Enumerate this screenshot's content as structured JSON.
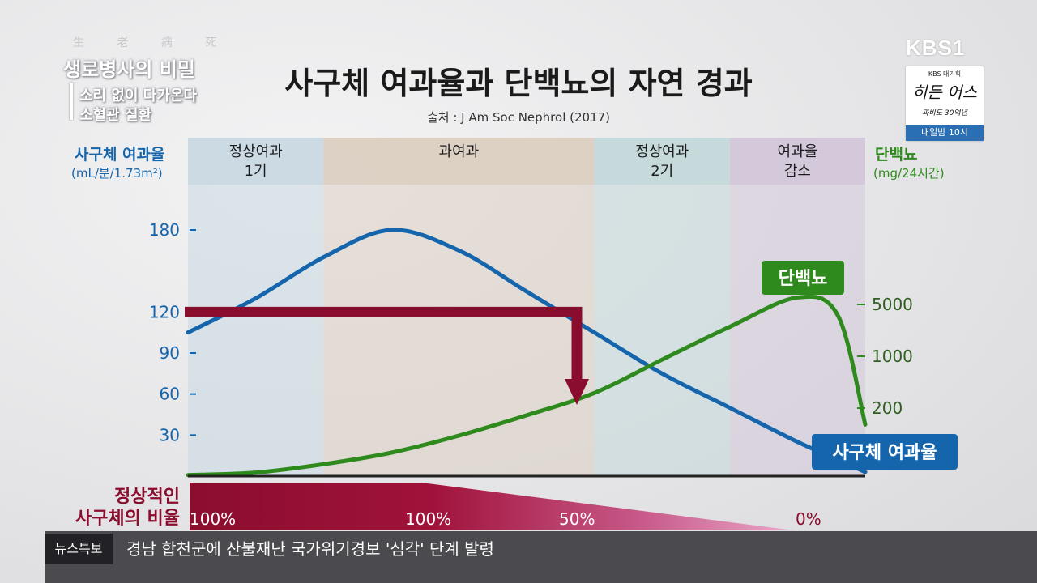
{
  "broadcast": {
    "show_hanja": "生 老 病 死",
    "show_name": "생로병사의 비밀",
    "episode_line1": "소리 없이 다가온다",
    "episode_line2": "소혈관 질환",
    "channel_logo": "KBS1",
    "promo_line1": "KBS 대기획",
    "promo_line2": "히든 어스",
    "promo_line3": "과비도 30억년",
    "promo_schedule": "내일밤 10시"
  },
  "title": "사구체 여과율과 단백뇨의 자연 경과",
  "source": "출처 : J Am Soc Nephrol (2017)",
  "ticker": {
    "label": "뉴스특보",
    "text": "경남 합천군에 산불재난 국가위기경보 '심각' 단계 발령"
  },
  "colors": {
    "gfr": "#1565ad",
    "proteinuria": "#2f8a1e",
    "arrow": "#8b0d2e",
    "stage_normal1": "#c9d8e2",
    "stage_hyper": "#dccfc2",
    "stage_normal2": "#c4d8da",
    "stage_decrease": "#d3c8da"
  },
  "chart_data": {
    "type": "line",
    "title": "사구체 여과율과 단백뇨의 자연 경과",
    "left_axis": {
      "label_line1": "사구체 여과율",
      "label_line2": "(mL/분/1.73m²)",
      "ticks": [
        180,
        120,
        90,
        60,
        30
      ],
      "ylim": [
        0,
        180
      ]
    },
    "right_axis": {
      "label_line1": "단백뇨",
      "label_line2": "(mg/24시간)",
      "ticks": [
        5000,
        1000,
        200
      ],
      "scale": "log"
    },
    "stages": [
      {
        "label_line1": "정상여과",
        "label_line2": "1기",
        "start": 0,
        "end": 1
      },
      {
        "label_line1": "과여과",
        "label_line2": "",
        "start": 1,
        "end": 3
      },
      {
        "label_line1": "정상여과",
        "label_line2": "2기",
        "start": 3,
        "end": 4
      },
      {
        "label_line1": "여과율",
        "label_line2": "감소",
        "start": 4,
        "end": 5
      }
    ],
    "x": [
      0,
      0.5,
      1,
      1.5,
      2,
      2.5,
      3,
      3.5,
      4,
      4.5,
      4.8,
      5
    ],
    "series": [
      {
        "name": "사구체 여과율",
        "axis": "left",
        "values": [
          105,
          130,
          160,
          180,
          165,
          135,
          105,
          75,
          50,
          25,
          12,
          3
        ]
      },
      {
        "name": "단백뇨",
        "axis": "right",
        "values": [
          25,
          27,
          35,
          50,
          85,
          160,
          320,
          900,
          2500,
          6200,
          3500,
          120
        ]
      }
    ],
    "annotation": {
      "type": "arrow",
      "gfr_level": 120,
      "points_to": "단백뇨"
    },
    "normal_glomeruli_ratio": {
      "label_line1": "정상적인",
      "label_line2": "사구체의 비율",
      "values": [
        "100%",
        "100%",
        "50%",
        "0%"
      ]
    }
  }
}
